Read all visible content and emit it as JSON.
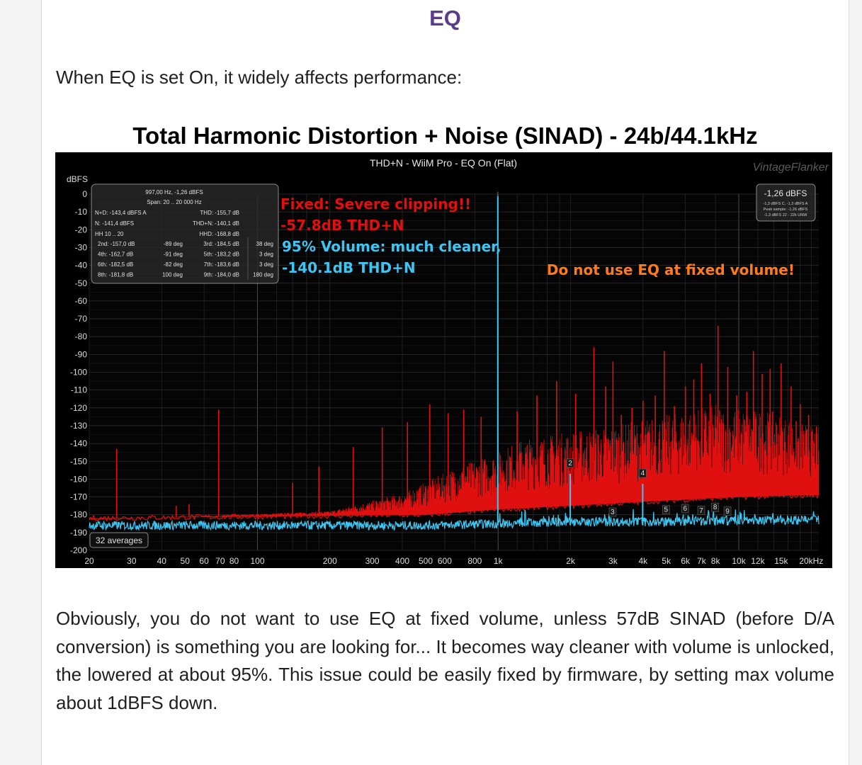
{
  "page": {
    "heading": "EQ",
    "intro": "When EQ is set On, it widely affects performance:",
    "chart_title": "Total Harmonic Distortion + Noise (SINAD) - 24b/44.1kHz",
    "conclusion": "Obviously, you do not want to use EQ at fixed volume, unless 57dB SINAD (before D/A conversion) is something you are looking for... It becomes way cleaner with volume is unlocked, the lowered at about 95%. This issue could be easily fixed by firmware, by setting max volume about 1dBFS down."
  },
  "chart_data": {
    "type": "line",
    "title": "THD+N - WiiM Pro - EQ On (Flat)",
    "watermark": "VintageFlanker",
    "ylabel": "dBFS",
    "xscale": "log",
    "xlim": [
      20,
      21500
    ],
    "ylim": [
      -200,
      0
    ],
    "grid": true,
    "x_ticks": [
      20,
      30,
      40,
      50,
      60,
      70,
      80,
      100,
      200,
      300,
      400,
      500,
      600,
      800,
      1000,
      2000,
      3000,
      4000,
      5000,
      6000,
      7000,
      8000,
      10000,
      12000,
      15000,
      20000
    ],
    "x_tick_labels": [
      "20",
      "30",
      "40",
      "50",
      "60",
      "70",
      "80",
      "100",
      "200",
      "300",
      "400",
      "500",
      "600",
      "800",
      "1k",
      "2k",
      "3k",
      "4k",
      "5k",
      "6k",
      "7k",
      "8k",
      "10k",
      "12k",
      "15k",
      "20kHz"
    ],
    "y_ticks": [
      0,
      -10,
      -20,
      -30,
      -40,
      -50,
      -60,
      -70,
      -80,
      -90,
      -100,
      -110,
      -120,
      -130,
      -140,
      -150,
      -160,
      -170,
      -180,
      -190,
      -200
    ],
    "series": [
      {
        "color": "#e01010",
        "fundamental": {
          "x": 997,
          "y": -1.26
        },
        "floor": [
          [
            20,
            -182
          ],
          [
            100,
            -181
          ],
          [
            500,
            -180
          ],
          [
            1000,
            -177
          ],
          [
            2000,
            -175
          ],
          [
            5000,
            -172
          ],
          [
            10000,
            -170
          ],
          [
            20000,
            -169
          ]
        ],
        "envelope": [
          [
            20,
            -183
          ],
          [
            200,
            -178
          ],
          [
            400,
            -168
          ],
          [
            700,
            -152
          ],
          [
            1000,
            -145
          ],
          [
            1200,
            -138
          ],
          [
            2000,
            -133
          ],
          [
            3000,
            -130
          ],
          [
            4000,
            -126
          ],
          [
            6000,
            -122
          ],
          [
            8000,
            -118
          ],
          [
            10000,
            -120
          ],
          [
            14000,
            -122
          ],
          [
            20000,
            -130
          ]
        ],
        "spikes": [
          [
            26,
            -143
          ],
          [
            46,
            -175
          ],
          [
            52,
            -174
          ],
          [
            69,
            -121
          ],
          [
            140,
            -162
          ],
          [
            180,
            -153
          ],
          [
            250,
            -142
          ],
          [
            330,
            -131
          ],
          [
            420,
            -128
          ],
          [
            520,
            -118
          ],
          [
            620,
            -123
          ],
          [
            720,
            -121
          ],
          [
            850,
            -125
          ],
          [
            1200,
            -122
          ],
          [
            1450,
            -113
          ],
          [
            1750,
            -105
          ],
          [
            2100,
            -112
          ],
          [
            2500,
            -86
          ],
          [
            2800,
            -108
          ],
          [
            3000,
            -94
          ],
          [
            3250,
            -124
          ],
          [
            3600,
            -120
          ],
          [
            4000,
            -116
          ],
          [
            4500,
            -113
          ],
          [
            4900,
            -88
          ],
          [
            5400,
            -119
          ],
          [
            6000,
            -108
          ],
          [
            6500,
            -104
          ],
          [
            7000,
            -95
          ],
          [
            7600,
            -112
          ],
          [
            8200,
            -74
          ],
          [
            9000,
            -97
          ],
          [
            9800,
            -113
          ],
          [
            10800,
            -111
          ],
          [
            11500,
            -88
          ],
          [
            12500,
            -101
          ],
          [
            13500,
            -98
          ],
          [
            15000,
            -95
          ],
          [
            16500,
            -108
          ],
          [
            18000,
            -118
          ],
          [
            19500,
            -124
          ]
        ]
      },
      {
        "color": "#3ec6f2",
        "fundamental": {
          "x": 997,
          "y": -1.26
        },
        "floor": [
          [
            20,
            -186
          ],
          [
            100,
            -186
          ],
          [
            500,
            -186
          ],
          [
            1000,
            -185
          ],
          [
            2000,
            -184
          ],
          [
            5000,
            -184
          ],
          [
            10000,
            -183
          ],
          [
            20000,
            -183
          ]
        ],
        "harmonics": [
          {
            "label": "2",
            "x": 1994,
            "y": -157.0
          },
          {
            "label": "3",
            "x": 2991,
            "y": -184.5
          },
          {
            "label": "4",
            "x": 3988,
            "y": -162.7
          },
          {
            "label": "5",
            "x": 4985,
            "y": -183.2
          },
          {
            "label": "6",
            "x": 5982,
            "y": -182.5
          },
          {
            "label": "7",
            "x": 6979,
            "y": -183.6
          },
          {
            "label": "8",
            "x": 7976,
            "y": -181.8
          },
          {
            "label": "9",
            "x": 8973,
            "y": -184.0
          }
        ]
      }
    ],
    "annotations": [
      {
        "text": "Fixed: Severe clipping!!",
        "color": "#e01010"
      },
      {
        "text": "-57.8dB THD+N",
        "color": "#e01010"
      },
      {
        "text": "95% Volume: much cleaner,",
        "color": "#3ec6f2"
      },
      {
        "text": "-140.1dB THD+N",
        "color": "#3ec6f2"
      },
      {
        "text": "Do not use EQ at fixed volume!",
        "color": "#ff7a1a"
      }
    ],
    "stats_header": [
      "997,00 Hz, -1,26 dBFS",
      "Span: 20 .. 20 000 Hz"
    ],
    "stats_rows": [
      [
        "N+D: -143,4 dBFS A",
        "THD: -155,7 dB"
      ],
      [
        "N: -141,4 dBFS",
        "THD+N: -140,1 dB"
      ],
      [
        "HH 10 .. 20",
        "HHD: -168,8 dB"
      ]
    ],
    "harmonic_rows": [
      [
        "2nd: -157,0 dB",
        "-89 deg",
        "3rd: -184,5 dB",
        "38 deg"
      ],
      [
        "4th: -162,7 dB",
        "-91 deg",
        "5th: -183,2 dB",
        "3 deg"
      ],
      [
        "6th: -182,5 dB",
        "-82 deg",
        "7th: -183,6 dB",
        "3 deg"
      ],
      [
        "8th: -181,8 dB",
        "100 deg",
        "9th: -184,0 dB",
        "180 deg"
      ]
    ],
    "level_box": {
      "value": "-1,26 dBFS",
      "lines": [
        "-1,3 dBFS C, -1,3 dBFS A",
        "Peak sample: -1,26 dBFS",
        "-1,3 dBFS 22 - 22k UNW"
      ]
    },
    "averages": "32 averages"
  },
  "colors": {
    "heading": "#5b3c8c",
    "background": "#000000",
    "red_trace": "#e01010",
    "blue_trace": "#3ec6f2",
    "orange_note": "#ff7a1a"
  }
}
